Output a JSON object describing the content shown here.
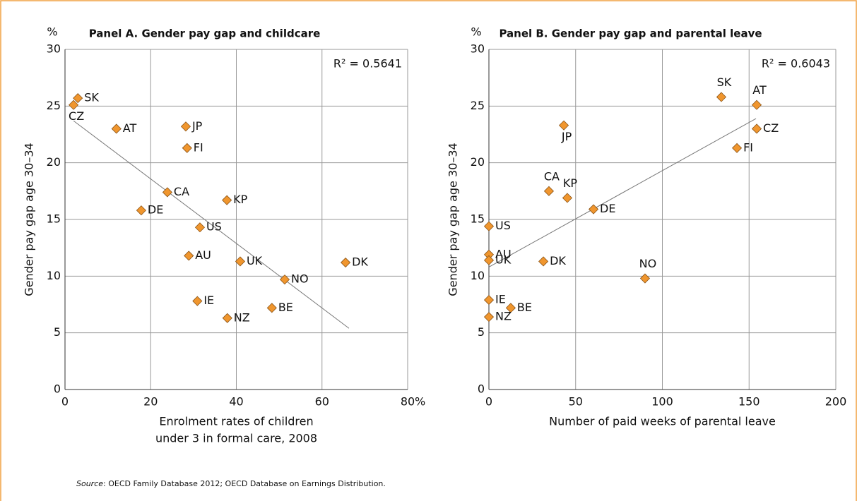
{
  "chart_data": [
    {
      "type": "scatter",
      "title": "Panel A. Gender pay gap and childcare",
      "ylabel": "Gender pay gap age 30–34",
      "yunit": "%",
      "xlabel": [
        "Enrolment rates of children",
        "under 3 in formal care, 2008"
      ],
      "xunit": "%",
      "annotation": "R² = 0.5641",
      "labels": [
        "SK",
        "CZ",
        "AT",
        "JP",
        "FI",
        "CA",
        "KP",
        "DE",
        "US",
        "AU",
        "UK",
        "DK",
        "NO",
        "IE",
        "BE",
        "NZ"
      ],
      "x": [
        3.0,
        2.0,
        12.0,
        28.2,
        28.5,
        23.9,
        37.8,
        17.8,
        31.5,
        28.9,
        40.9,
        65.5,
        51.3,
        30.9,
        48.3,
        37.9
      ],
      "values": [
        25.7,
        25.1,
        23.0,
        23.2,
        21.3,
        17.4,
        16.7,
        15.8,
        14.3,
        11.8,
        11.3,
        11.2,
        9.7,
        7.8,
        7.2,
        6.3
      ],
      "color": "#f0962e",
      "trendline": {
        "x": [
          2.0,
          66.3
        ],
        "y": [
          23.7,
          5.4
        ]
      },
      "xlim": [
        0,
        80
      ],
      "xticks": [
        0,
        20,
        40,
        60,
        80
      ],
      "ylim": [
        0,
        30
      ],
      "yticks": [
        0,
        5,
        10,
        15,
        20,
        25,
        30
      ],
      "grid": true
    },
    {
      "type": "scatter",
      "title": "Panel B. Gender pay gap and parental leave",
      "ylabel": "Gender pay gap age 30–34",
      "yunit": "%",
      "xlabel": [
        "Number of paid weeks of parental leave"
      ],
      "annotation": "R² = 0.6043",
      "labels": [
        "SK",
        "AT",
        "CZ",
        "FI",
        "JP",
        "CA",
        "KP",
        "DE",
        "US",
        "AU",
        "UK",
        "DK",
        "NO",
        "IE",
        "BE",
        "NZ"
      ],
      "x": [
        134,
        154.4,
        154.4,
        143,
        43.2,
        34.6,
        45.2,
        60.3,
        0,
        0,
        0,
        31.4,
        90,
        0,
        12.6,
        0
      ],
      "values": [
        25.8,
        25.1,
        23.0,
        21.3,
        23.3,
        17.5,
        16.9,
        15.9,
        14.4,
        11.9,
        11.4,
        11.3,
        9.8,
        7.9,
        7.2,
        6.4
      ],
      "color": "#f0962e",
      "trendline": {
        "x": [
          0,
          154
        ],
        "y": [
          10.8,
          23.9
        ]
      },
      "xlim": [
        0,
        200
      ],
      "xticks": [
        0,
        50,
        100,
        150,
        200
      ],
      "ylim": [
        0,
        30
      ],
      "yticks": [
        0,
        5,
        10,
        15,
        20,
        25,
        30
      ],
      "grid": true
    }
  ],
  "source": {
    "label": "Source",
    "text": ": OECD Family Database 2012; OECD Database on Earnings Distribution."
  }
}
